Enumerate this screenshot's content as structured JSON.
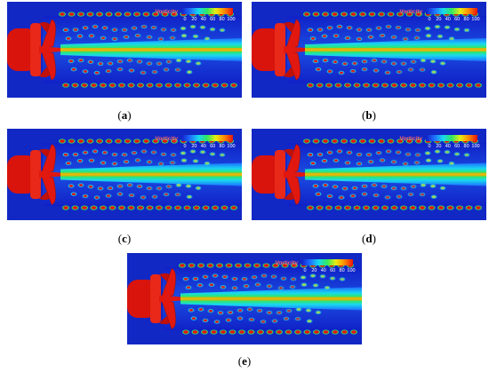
{
  "colorbar": {
    "title": "Vorticity",
    "ticks": [
      "0",
      "20",
      "40",
      "60",
      "80",
      "100"
    ],
    "colors": [
      "#1020c8",
      "#1e6eff",
      "#18d8f0",
      "#30e860",
      "#e8ee10",
      "#ff8a00",
      "#e8140c"
    ]
  },
  "panels": [
    {
      "id": "a",
      "label": "a"
    },
    {
      "id": "b",
      "label": "b"
    },
    {
      "id": "c",
      "label": "c"
    },
    {
      "id": "d",
      "label": "d"
    },
    {
      "id": "e",
      "label": "e"
    }
  ]
}
